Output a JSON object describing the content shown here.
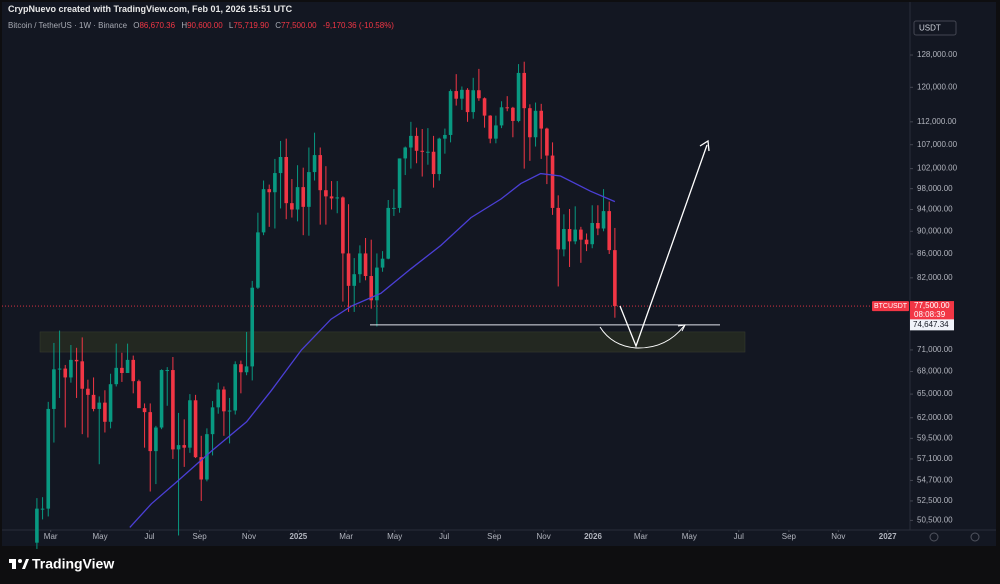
{
  "header": {
    "credit": "CrypNuevo created with TradingView.com, Feb 01, 2026 15:51 UTC"
  },
  "chart_data": {
    "type": "candlestick",
    "symbol": "Bitcoin / TetherUS · 1W · Binance",
    "ohlc": [
      {
        "key": "O",
        "value": "86,670.36"
      },
      {
        "key": "H",
        "value": "90,600.00"
      },
      {
        "key": "L",
        "value": "75,719.90"
      },
      {
        "key": "C",
        "value": "77,500.00"
      }
    ],
    "change": "-9,170.36 (-10.58%)",
    "currency": "USDT",
    "up_color": "#089981",
    "down_color": "#f23645",
    "log_scale": true,
    "grid": false,
    "open": [
      48300,
      51700,
      51700,
      63100,
      68300,
      68400,
      67200,
      69600,
      69400,
      65700,
      64900,
      63100,
      63900,
      61500,
      66300,
      68500,
      67800,
      69600,
      66700,
      63200,
      62700,
      58000,
      60800,
      68200,
      68200,
      58200,
      58700,
      58400,
      64200,
      57300,
      54800,
      60000,
      63300,
      65600,
      62800,
      62900,
      69000,
      67900,
      68700,
      80400,
      89800,
      97900,
      97300,
      101100,
      104400,
      95200,
      94000,
      98300,
      94500,
      101300,
      104800,
      97700,
      96500,
      96100,
      96300,
      86100,
      80700,
      82600,
      86100,
      82300,
      78400,
      83700,
      85200,
      94300,
      94300,
      104100,
      106400,
      108900,
      105700,
      105500,
      105500,
      100900,
      108300,
      109100,
      119100,
      117300,
      119400,
      114200,
      119300,
      117400,
      113400,
      108300,
      111200,
      115300,
      115200,
      112200,
      123500,
      115100,
      108600,
      114500,
      110500,
      104700,
      94300,
      86800,
      90400,
      88200,
      90300,
      88500,
      87700,
      91500,
      90500,
      93700,
      86670.36
    ],
    "high": [
      52800,
      52900,
      64000,
      72000,
      73800,
      68900,
      71700,
      71300,
      72800,
      66900,
      67200,
      64700,
      65500,
      67700,
      71900,
      70600,
      71900,
      70200,
      66900,
      63800,
      63800,
      61000,
      68300,
      68600,
      70000,
      62600,
      61800,
      65000,
      64900,
      59800,
      60700,
      64100,
      66500,
      66000,
      64500,
      69400,
      69500,
      73600,
      81500,
      93400,
      99600,
      98800,
      104000,
      107800,
      108300,
      99900,
      102700,
      102200,
      106400,
      109600,
      106400,
      102500,
      99500,
      99500,
      96500,
      95000,
      85300,
      87500,
      88800,
      88500,
      86100,
      86500,
      95800,
      97900,
      104100,
      106600,
      112000,
      110700,
      110400,
      110600,
      108900,
      108500,
      110500,
      119500,
      123200,
      120200,
      119800,
      122300,
      124500,
      117600,
      113500,
      113400,
      116700,
      117900,
      115400,
      125700,
      126300,
      116000,
      116400,
      116100,
      110700,
      107500,
      96700,
      93100,
      94100,
      94600,
      90800,
      89600,
      94800,
      94800,
      97900,
      95500,
      90600
    ],
    "low": [
      47700,
      50600,
      50900,
      59000,
      64500,
      60800,
      66500,
      64500,
      60000,
      59600,
      62800,
      56500,
      60200,
      60700,
      66000,
      66600,
      68000,
      65100,
      63300,
      58400,
      53500,
      54300,
      60600,
      63500,
      57100,
      49000,
      56200,
      57800,
      57200,
      52500,
      54600,
      57500,
      62500,
      59800,
      58900,
      62400,
      65100,
      67500,
      66800,
      80200,
      89300,
      90800,
      90500,
      94200,
      92200,
      92500,
      91800,
      89300,
      89200,
      99600,
      91200,
      91200,
      94000,
      93300,
      78200,
      76600,
      76600,
      81200,
      81600,
      77100,
      74400,
      83000,
      85100,
      92800,
      93400,
      100700,
      102000,
      103100,
      100400,
      102800,
      98200,
      99600,
      105100,
      107500,
      115700,
      114700,
      112000,
      112700,
      116800,
      110700,
      107300,
      107300,
      110600,
      114400,
      108600,
      111900,
      102000,
      103600,
      106600,
      104000,
      98900,
      93000,
      80600,
      85600,
      83800,
      87700,
      84500,
      86500,
      87000,
      89300,
      90000,
      86000,
      75719.9
    ],
    "close": [
      51700,
      51700,
      63100,
      68300,
      68400,
      67200,
      69600,
      69400,
      65700,
      64900,
      63100,
      63900,
      61500,
      66300,
      68500,
      67800,
      69600,
      66700,
      63200,
      62700,
      58000,
      60800,
      68200,
      68200,
      58200,
      58700,
      58400,
      64200,
      57300,
      54800,
      60000,
      63300,
      65600,
      62800,
      62900,
      69000,
      67900,
      68700,
      80400,
      89800,
      97900,
      97300,
      101100,
      104400,
      95200,
      94000,
      98300,
      94500,
      101300,
      104800,
      97700,
      96500,
      96100,
      96300,
      86100,
      80700,
      82600,
      86100,
      82300,
      78400,
      83700,
      85200,
      94300,
      94300,
      104100,
      106400,
      108900,
      105700,
      105500,
      105500,
      100900,
      108300,
      109100,
      119100,
      117300,
      119400,
      114200,
      119300,
      117400,
      113400,
      108300,
      111200,
      115300,
      115200,
      112200,
      123500,
      115100,
      108600,
      114500,
      110500,
      104700,
      94300,
      86800,
      90400,
      88200,
      90300,
      88500,
      87700,
      91500,
      90500,
      93700,
      86670.36,
      77500
    ],
    "moving_average": {
      "color": "#4b3fd6",
      "x": [
        16.4,
        20.2,
        24.6,
        30.8,
        37,
        41.4,
        46.7,
        51.9,
        55.5,
        60.7,
        66,
        71.3,
        76.6,
        81.9,
        85.4,
        88.9,
        92.4,
        97.7,
        102
      ],
      "values": [
        49800,
        52200,
        54500,
        58000,
        61500,
        65500,
        71000,
        75500,
        77500,
        79500,
        83500,
        87500,
        92500,
        96000,
        99000,
        101000,
        100500,
        97500,
        95500
      ]
    },
    "xlim": [
      -6.16,
      153.2
    ],
    "xticks": [
      {
        "value": 2.43,
        "label": "Mar"
      },
      {
        "value": 11.14,
        "label": "May"
      },
      {
        "value": 19.86,
        "label": "Jul"
      },
      {
        "value": 28.71,
        "label": "Sep"
      },
      {
        "value": 37.43,
        "label": "Nov"
      },
      {
        "value": 46.14,
        "label": "2025"
      },
      {
        "value": 54.57,
        "label": "Mar"
      },
      {
        "value": 63.14,
        "label": "May"
      },
      {
        "value": 71.86,
        "label": "Jul"
      },
      {
        "value": 80.71,
        "label": "Sep"
      },
      {
        "value": 89.43,
        "label": "Nov"
      },
      {
        "value": 98.14,
        "label": "2026"
      },
      {
        "value": 106.57,
        "label": "Mar"
      },
      {
        "value": 115.14,
        "label": "May"
      },
      {
        "value": 123.86,
        "label": "Jul"
      },
      {
        "value": 132.71,
        "label": "Sep"
      },
      {
        "value": 141.43,
        "label": "Nov"
      },
      {
        "value": 150.14,
        "label": "2027"
      }
    ],
    "ylim": [
      49540,
      131900
    ],
    "yticks": [
      {
        "value": 128000,
        "label": "128,000.00"
      },
      {
        "value": 120000,
        "label": "120,000.00"
      },
      {
        "value": 112000,
        "label": "112,000.00"
      },
      {
        "value": 107000,
        "label": "107,000.00"
      },
      {
        "value": 102000,
        "label": "102,000.00"
      },
      {
        "value": 98000,
        "label": "98,000.00"
      },
      {
        "value": 94000,
        "label": "94,000.00"
      },
      {
        "value": 90000,
        "label": "90,000.00"
      },
      {
        "value": 86000,
        "label": "86,000.00"
      },
      {
        "value": 82000,
        "label": "82,000.00"
      },
      {
        "value": 71000,
        "label": "71,000.00"
      },
      {
        "value": 68000,
        "label": "68,000.00"
      },
      {
        "value": 65000,
        "label": "65,000.00"
      },
      {
        "value": 62000,
        "label": "62,000.00"
      },
      {
        "value": 59500,
        "label": "59,500.00"
      },
      {
        "value": 57100,
        "label": "57,100.00"
      },
      {
        "value": 54700,
        "label": "54,700.00"
      },
      {
        "value": 52500,
        "label": "52,500.00"
      },
      {
        "value": 50500,
        "label": "50,500.00"
      }
    ],
    "last_price": {
      "symbol": "BTCUSDT",
      "label": "77,500.00",
      "countdown": "08:08:39"
    },
    "support_level": {
      "value": 74647.34,
      "label": "74,647.34"
    },
    "support_zone": [
      70700,
      73600
    ]
  },
  "footer": {
    "brand": "TradingView"
  }
}
